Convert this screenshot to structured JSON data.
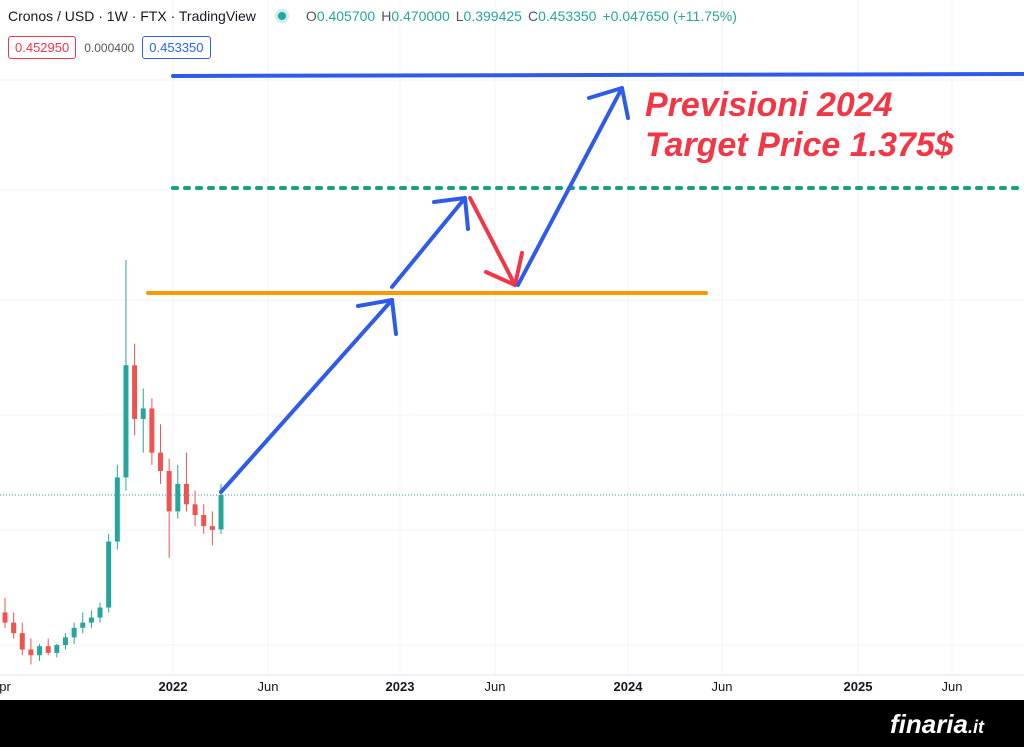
{
  "header": {
    "symbol": "Cronos / USD · 1W · FTX · TradingView",
    "ohlc": [
      {
        "label": "O",
        "value": "0.405700"
      },
      {
        "label": "H",
        "value": "0.470000"
      },
      {
        "label": "L",
        "value": "0.399425"
      },
      {
        "label": "C",
        "value": "0.453350"
      }
    ],
    "change": "+0.047650 (+11.75%)",
    "bid": "0.452950",
    "spread": "0.000400",
    "ask": "0.453350"
  },
  "annotation": [
    "Previsioni 2024",
    "Target Price 1.375$"
  ],
  "x_axis": [
    "pr",
    "2022",
    "Jun",
    "2023",
    "Jun",
    "2024",
    "Jun",
    "2025",
    "Jun"
  ],
  "candles": [
    [
      0.31,
      0.325,
      0.295,
      0.3
    ],
    [
      0.3,
      0.31,
      0.285,
      0.29
    ],
    [
      0.29,
      0.3,
      0.27,
      0.275
    ],
    [
      0.275,
      0.285,
      0.262,
      0.27
    ],
    [
      0.27,
      0.28,
      0.265,
      0.278
    ],
    [
      0.278,
      0.285,
      0.27,
      0.272
    ],
    [
      0.272,
      0.28,
      0.268,
      0.279
    ],
    [
      0.279,
      0.29,
      0.275,
      0.286
    ],
    [
      0.286,
      0.3,
      0.28,
      0.295
    ],
    [
      0.295,
      0.31,
      0.29,
      0.3
    ],
    [
      0.3,
      0.312,
      0.295,
      0.305
    ],
    [
      0.305,
      0.32,
      0.3,
      0.315
    ],
    [
      0.315,
      0.4,
      0.31,
      0.39
    ],
    [
      0.39,
      0.5,
      0.38,
      0.48
    ],
    [
      0.48,
      0.97,
      0.46,
      0.69
    ],
    [
      0.69,
      0.74,
      0.55,
      0.58
    ],
    [
      0.58,
      0.64,
      0.52,
      0.6
    ],
    [
      0.6,
      0.62,
      0.5,
      0.52
    ],
    [
      0.52,
      0.57,
      0.47,
      0.49
    ],
    [
      0.49,
      0.51,
      0.37,
      0.43
    ],
    [
      0.43,
      0.5,
      0.42,
      0.47
    ],
    [
      0.47,
      0.52,
      0.43,
      0.44
    ],
    [
      0.44,
      0.46,
      0.41,
      0.425
    ],
    [
      0.425,
      0.44,
      0.4,
      0.41
    ],
    [
      0.41,
      0.43,
      0.385,
      0.405
    ],
    [
      0.4057,
      0.47,
      0.399425,
      0.45335
    ]
  ],
  "footer": {
    "brand": "finaria",
    "tld": ".it"
  }
}
